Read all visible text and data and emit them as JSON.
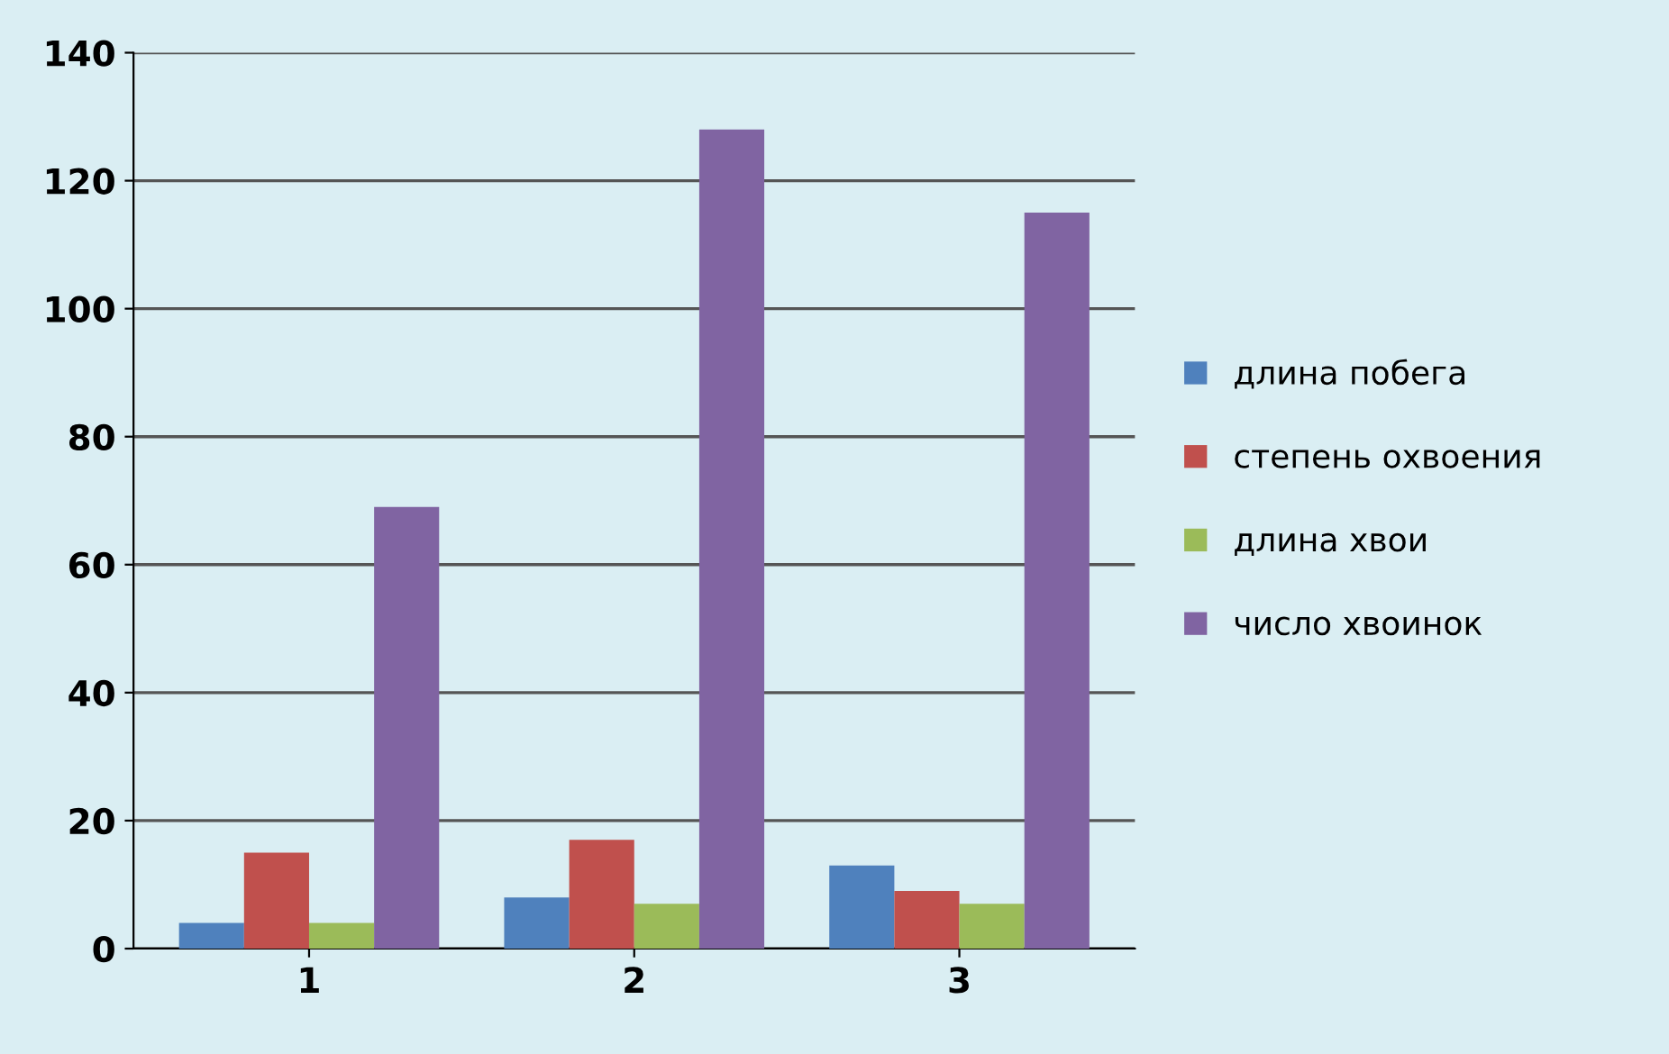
{
  "chart_data": {
    "type": "bar",
    "categories": [
      "1",
      "2",
      "3"
    ],
    "series": [
      {
        "name": "длина побега",
        "color": "#4f81bd",
        "values": [
          4,
          8,
          13
        ]
      },
      {
        "name": "степень охвоения",
        "color": "#c0504d",
        "values": [
          15,
          17,
          9
        ]
      },
      {
        "name": "длина хвои",
        "color": "#9bbb59",
        "values": [
          4,
          7,
          7
        ]
      },
      {
        "name": "число хвоинок",
        "color": "#8064a2",
        "values": [
          69,
          128,
          115
        ]
      }
    ],
    "ylim": [
      0,
      140
    ],
    "yticks": [
      0,
      20,
      40,
      60,
      80,
      100,
      120,
      140
    ],
    "grid": "y",
    "legend": "right"
  }
}
